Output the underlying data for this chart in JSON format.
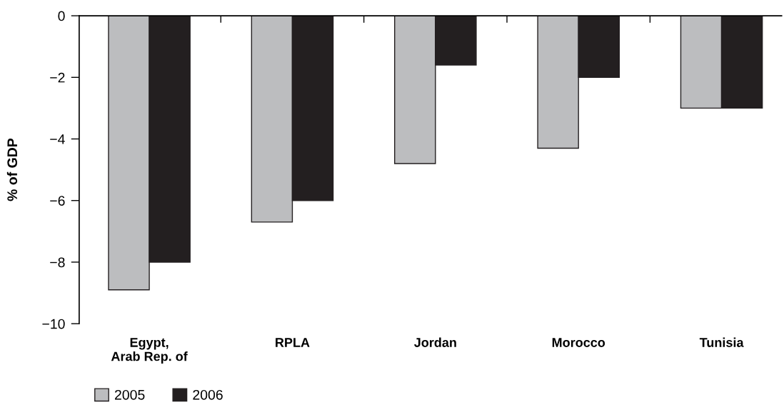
{
  "chart_data": {
    "type": "bar",
    "ylabel": "% of GDP",
    "categories": [
      "Egypt,\nArab Rep. of",
      "RPLA",
      "Jordan",
      "Morocco",
      "Tunisia"
    ],
    "series": [
      {
        "name": "2005",
        "color": "#bcbdbf",
        "values": [
          -8.9,
          -6.7,
          -4.8,
          -4.3,
          -3.0
        ]
      },
      {
        "name": "2006",
        "color": "#231f20",
        "values": [
          -8.0,
          -6.0,
          -1.6,
          -2.0,
          -3.0
        ]
      }
    ],
    "ylim": [
      -10,
      0
    ],
    "yticks": [
      {
        "value": -10,
        "label": "−10"
      },
      {
        "value": -8,
        "label": "−8"
      },
      {
        "value": -6,
        "label": "−6"
      },
      {
        "value": -4,
        "label": "−4"
      },
      {
        "value": -2,
        "label": "−2"
      },
      0
    ],
    "grid": false,
    "legend": "bottom left"
  }
}
